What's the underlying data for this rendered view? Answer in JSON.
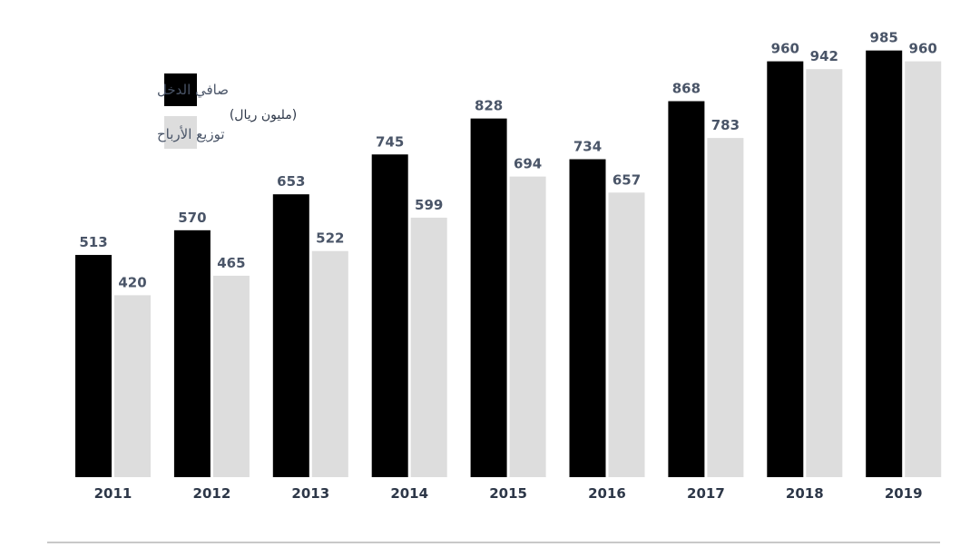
{
  "chart_data": {
    "type": "bar",
    "categories": [
      "2011",
      "2012",
      "2013",
      "2014",
      "2015",
      "2016",
      "2017",
      "2018",
      "2019"
    ],
    "series": [
      {
        "name": "صافي الدخل",
        "color": "#000000",
        "values": [
          513,
          570,
          653,
          745,
          828,
          734,
          868,
          960,
          985
        ]
      },
      {
        "name": "توزيع الأرباح",
        "color": "#dddddd",
        "values": [
          420,
          465,
          522,
          599,
          694,
          657,
          783,
          942,
          960
        ]
      }
    ],
    "unit_label": "(مليون ريال)",
    "ylim": [
      0,
      1000
    ],
    "legend": "top-left",
    "grid": false
  }
}
